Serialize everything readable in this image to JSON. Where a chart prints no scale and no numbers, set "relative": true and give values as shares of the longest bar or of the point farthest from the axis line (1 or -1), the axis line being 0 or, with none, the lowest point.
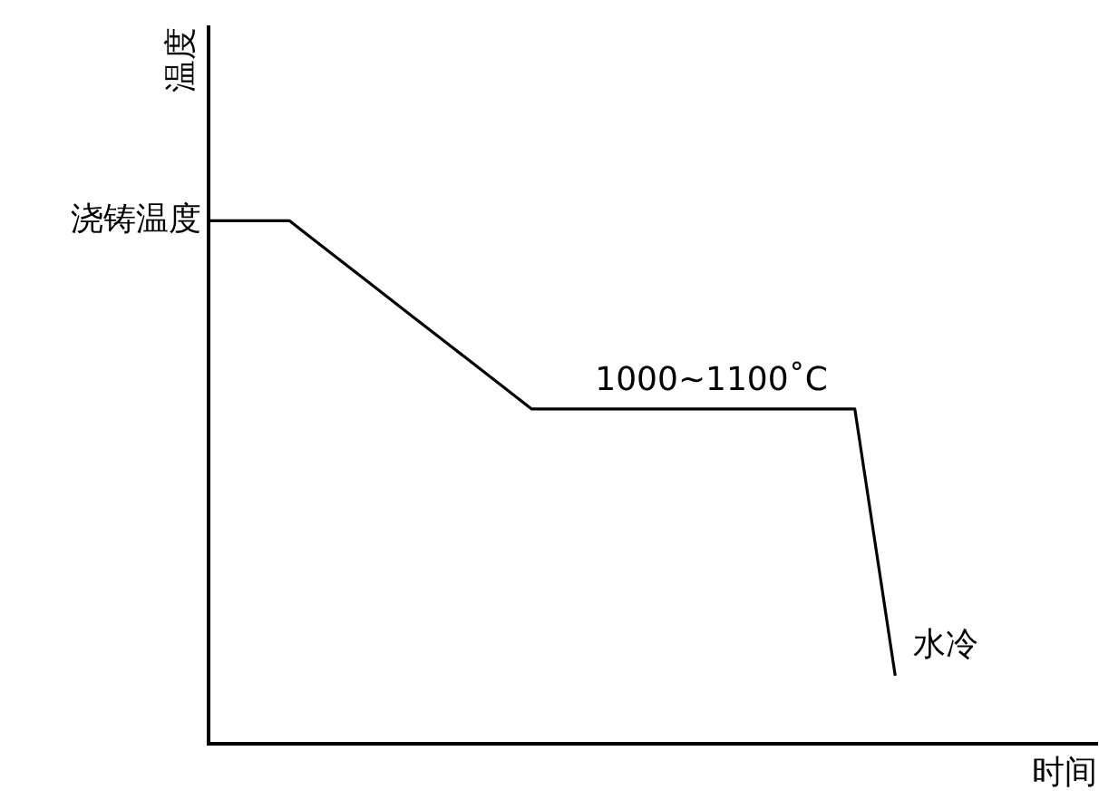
{
  "chart_data": {
    "type": "line",
    "relative": true,
    "xlabel": "时间",
    "ylabel": "温度",
    "marker": "none",
    "line_style": "solid",
    "grid": false,
    "legend": false,
    "categories": [
      null,
      null,
      null,
      null,
      null,
      null,
      null,
      null,
      null,
      null,
      null,
      null,
      null,
      null,
      null,
      null,
      null,
      null,
      null,
      null,
      null,
      null,
      null
    ],
    "series": [
      {
        "color": "#000000",
        "values": [
          1,
          1,
          1,
          0.94,
          0.88,
          0.82,
          0.76,
          0.7,
          0.64,
          0.64,
          0.64,
          0.64,
          0.64,
          0.64,
          0.64,
          0.64,
          0.64,
          0.13,
          null,
          null,
          null,
          null,
          null
        ]
      }
    ],
    "annotations": [
      "浇铸温度",
      {
        "text": "1000~1100˚C",
        "y": 0.64
      },
      "水冷"
    ]
  }
}
